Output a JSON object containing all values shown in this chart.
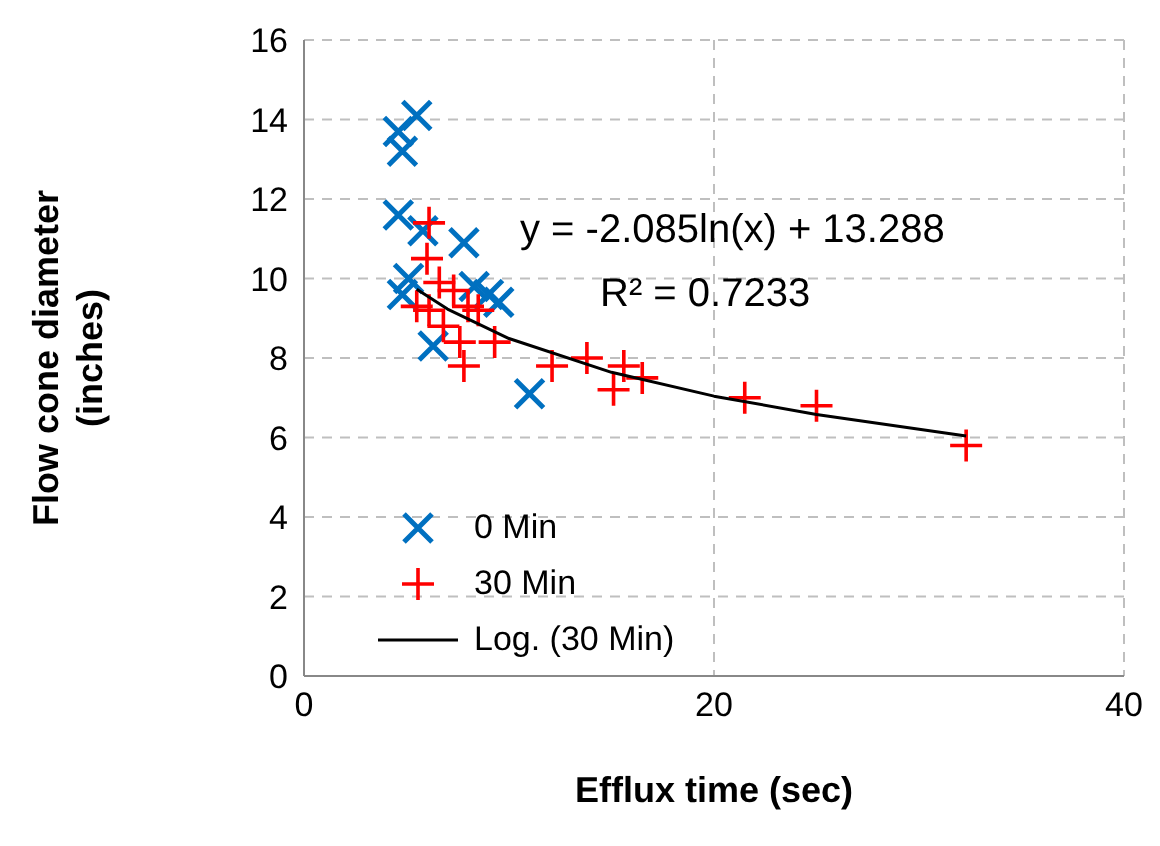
{
  "chart_data": {
    "type": "scatter",
    "xlabel": "Efflux time (sec)",
    "ylabel": "Flow cone diameter\n(inches)",
    "xlim": [
      0,
      40
    ],
    "xticks": [
      0,
      20,
      40
    ],
    "ylim": [
      0,
      16
    ],
    "yticks": [
      0,
      2,
      4,
      6,
      8,
      10,
      12,
      14,
      16
    ],
    "grid": true,
    "legend": "bottom left",
    "annotations": [
      "y = -2.085ln(x) + 13.288",
      "R² = 0.7233"
    ],
    "series": [
      {
        "name": "0 Min",
        "color": "#0070c0",
        "marker": "cross",
        "x": [
          5.5,
          4.6,
          4.8,
          4.6,
          5.8,
          7.8,
          5.1,
          4.8,
          9.5,
          9.0,
          6.3,
          11.0,
          8.3
        ],
        "values": [
          14.1,
          13.7,
          13.2,
          11.6,
          11.2,
          10.9,
          10.0,
          9.6,
          9.4,
          9.6,
          8.3,
          7.1,
          9.8
        ]
      },
      {
        "name": "30 Min",
        "color": "#ff0000",
        "marker": "plus",
        "x": [
          6.1,
          6.0,
          6.6,
          7.3,
          5.5,
          6.1,
          8.0,
          8.5,
          6.8,
          7.6,
          9.3,
          7.8,
          12.1,
          13.8,
          15.6,
          16.5,
          15.1,
          21.5,
          25.0,
          32.3
        ],
        "values": [
          11.4,
          10.5,
          9.9,
          9.7,
          9.3,
          9.2,
          9.3,
          9.2,
          8.8,
          8.4,
          8.4,
          7.8,
          7.8,
          8.0,
          7.8,
          7.5,
          7.2,
          7.0,
          6.8,
          5.8
        ]
      },
      {
        "name": "Log. (30 Min)",
        "type": "line",
        "color": "#000000",
        "marker": "none",
        "x": [
          5.5,
          7,
          10,
          15,
          20,
          25,
          32.3
        ],
        "values": [
          9.73,
          9.23,
          8.49,
          7.64,
          7.04,
          6.58,
          6.04
        ]
      }
    ]
  }
}
